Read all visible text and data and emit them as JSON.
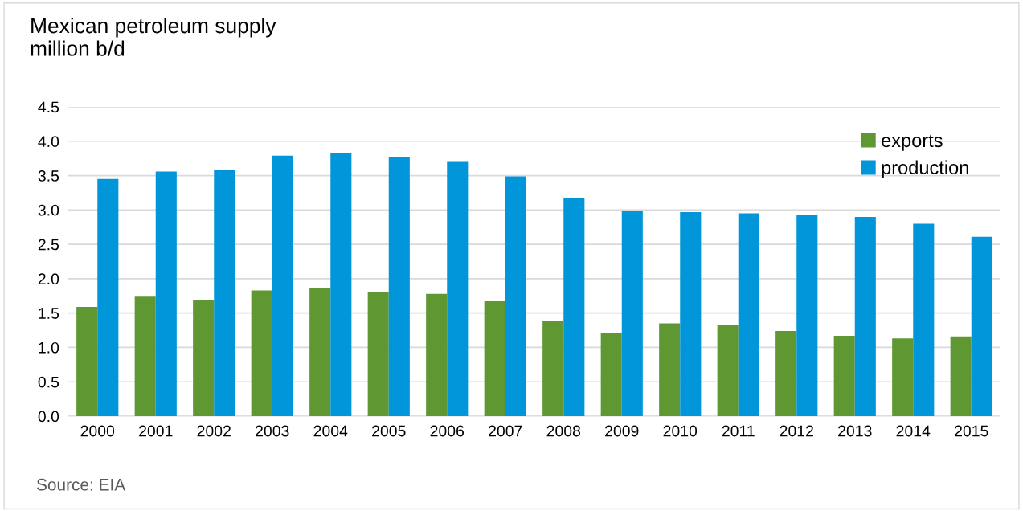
{
  "chart_data": {
    "type": "bar",
    "title": "Mexican petroleum supply\nmillion b/d",
    "categories": [
      "2000",
      "2001",
      "2002",
      "2003",
      "2004",
      "2005",
      "2006",
      "2007",
      "2008",
      "2009",
      "2010",
      "2011",
      "2012",
      "2013",
      "2014",
      "2015"
    ],
    "series": [
      {
        "name": "exports",
        "color": "#5f9733",
        "values": [
          1.59,
          1.74,
          1.69,
          1.83,
          1.86,
          1.8,
          1.78,
          1.67,
          1.39,
          1.21,
          1.35,
          1.32,
          1.24,
          1.17,
          1.13,
          1.16
        ]
      },
      {
        "name": "production",
        "color": "#0096d9",
        "values": [
          3.45,
          3.56,
          3.58,
          3.79,
          3.83,
          3.77,
          3.7,
          3.49,
          3.17,
          2.99,
          2.97,
          2.95,
          2.93,
          2.9,
          2.8,
          2.61
        ]
      }
    ],
    "ylim": [
      0,
      4.5
    ],
    "yticks": [
      {
        "value": 0,
        "label": "0.0"
      },
      {
        "value": 0.5,
        "label": "0.5"
      },
      {
        "value": 1,
        "label": "1.0"
      },
      {
        "value": 1.5,
        "label": "1.5"
      },
      {
        "value": 2,
        "label": "2.0"
      },
      {
        "value": 2.5,
        "label": "2.5"
      },
      {
        "value": 3,
        "label": "3.0"
      },
      {
        "value": 3.5,
        "label": "3.5"
      },
      {
        "value": 4,
        "label": "4.0"
      },
      {
        "value": 4.5,
        "label": "4.5"
      }
    ],
    "grid": "y",
    "legend": "top right",
    "annotations": [
      "Source: EIA"
    ]
  }
}
